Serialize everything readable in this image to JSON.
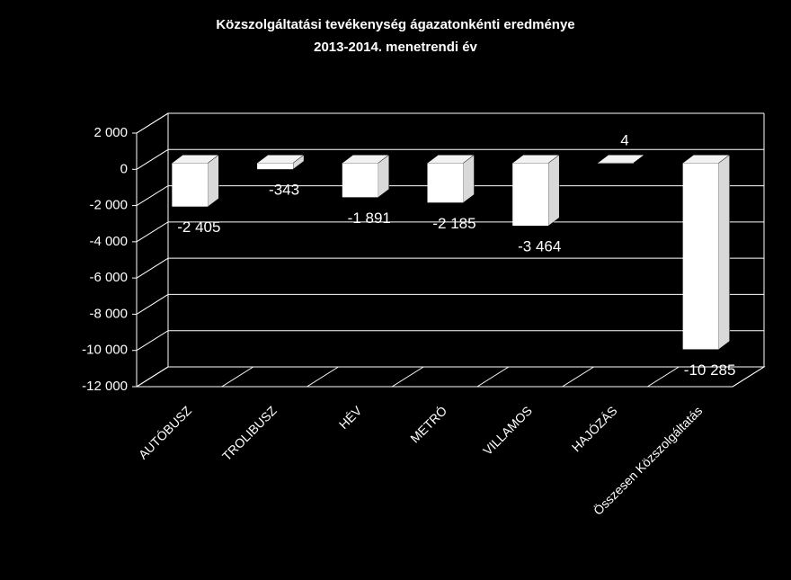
{
  "chart_data": {
    "type": "bar3d",
    "title": "Közszolgáltatási  tevékenység ágazatonkénti eredménye",
    "subtitle": "2013-2014. menetrendi év",
    "categories": [
      "AUTÓBUSZ",
      "TROLIBUSZ",
      "HÉV",
      "METRÓ",
      "VILLAMOS",
      "HAJÓZÁS",
      "Összesen Közszolgáltatás"
    ],
    "values": [
      -2405,
      -343,
      -1891,
      -2185,
      -3464,
      4,
      -10285
    ],
    "value_labels": [
      "-2 405",
      "-343",
      "-1 891",
      "-2 185",
      "-3 464",
      "4",
      "-10 285"
    ],
    "color": "#ffffff",
    "ylim": [
      -12000,
      2000
    ],
    "yticks": [
      {
        "value": 2000,
        "label": "2 000"
      },
      0,
      {
        "value": -2000,
        "label": "-2 000"
      },
      {
        "value": -4000,
        "label": "-4 000"
      },
      {
        "value": -6000,
        "label": "-6 000"
      },
      {
        "value": -8000,
        "label": "-8 000"
      },
      {
        "value": -10000,
        "label": "-10 000"
      },
      {
        "value": -12000,
        "label": "-12 000"
      }
    ],
    "grid": true
  }
}
